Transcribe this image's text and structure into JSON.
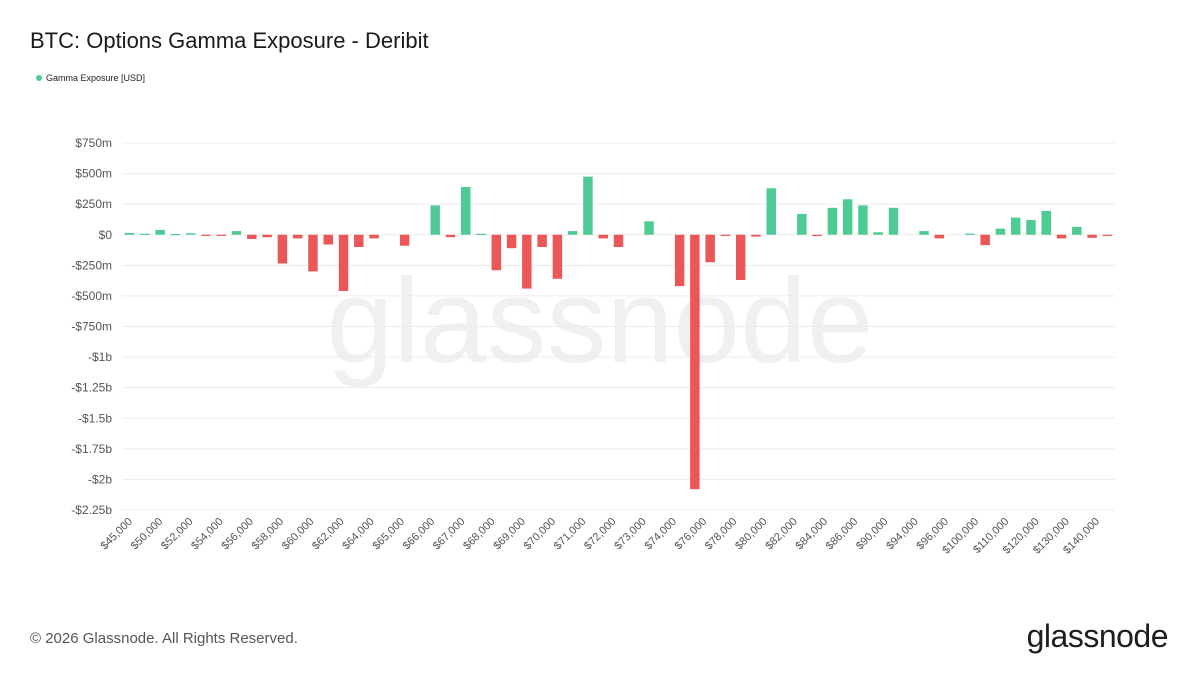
{
  "title": "BTC: Options Gamma Exposure - Deribit",
  "legend_label": "Gamma Exposure [USD]",
  "watermark": "glassnode",
  "footer": "© 2026 Glassnode. All Rights Reserved.",
  "logo": "glassnode",
  "colors": {
    "positive": "#4ecb94",
    "negative": "#eb5757",
    "grid": "#ececec",
    "tick": "#555555"
  },
  "chart_data": {
    "type": "bar",
    "title": "BTC: Options Gamma Exposure - Deribit",
    "xlabel": "",
    "ylabel": "",
    "ylim": [
      -2250,
      750
    ],
    "y_unit": "USD millions",
    "y_ticks": [
      750,
      500,
      250,
      0,
      -250,
      -500,
      -750,
      -1000,
      -1250,
      -1500,
      -1750,
      -2000,
      -2250
    ],
    "y_tick_labels": [
      "$750m",
      "$500m",
      "$250m",
      "$0",
      "-$250m",
      "-$500m",
      "-$750m",
      "-$1b",
      "-$1.25b",
      "-$1.5b",
      "-$1.75b",
      "-$2b",
      "-$2.25b"
    ],
    "x_tick_labels": [
      "$45,000",
      "$50,000",
      "$52,000",
      "$54,000",
      "$56,000",
      "$58,000",
      "$60,000",
      "$62,000",
      "$64,000",
      "$65,000",
      "$66,000",
      "$67,000",
      "$68,000",
      "$69,000",
      "$70,000",
      "$71,000",
      "$72,000",
      "$73,000",
      "$74,000",
      "$76,000",
      "$78,000",
      "$80,000",
      "$82,000",
      "$84,000",
      "$86,000",
      "$90,000",
      "$94,000",
      "$96,000",
      "$100,000",
      "$110,000",
      "$120,000",
      "$130,000",
      "$140,000"
    ],
    "legend_position": "top-left",
    "grid": true,
    "series": [
      {
        "name": "Gamma Exposure [USD]",
        "values": [
          15,
          8,
          40,
          6,
          12,
          -8,
          -10,
          30,
          -35,
          -20,
          -235,
          -30,
          -300,
          -80,
          -460,
          -100,
          -30,
          0,
          -90,
          0,
          240,
          -20,
          390,
          8,
          -290,
          -110,
          -440,
          -100,
          -360,
          30,
          475,
          -30,
          -100,
          0,
          110,
          0,
          -420,
          -2080,
          -225,
          -10,
          -370,
          -15,
          380,
          0,
          170,
          -10,
          220,
          290,
          240,
          20,
          220,
          0,
          30,
          -30,
          0,
          10,
          -85,
          50,
          140,
          120,
          195,
          -30,
          65,
          -25,
          -10
        ]
      }
    ]
  }
}
